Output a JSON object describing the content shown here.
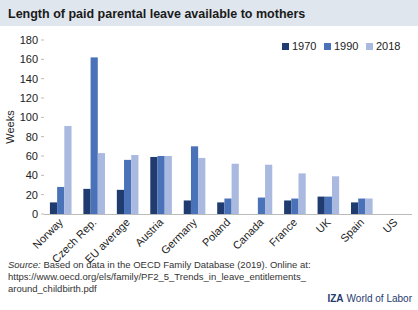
{
  "chart_data": {
    "type": "bar",
    "title": "Length of paid parental leave available to mothers",
    "y_label": "Weeks",
    "categories": [
      "Norway",
      "Czech Rep.",
      "EU average",
      "Austria",
      "Germany",
      "Poland",
      "Canada",
      "France",
      "UK",
      "Spain",
      "US"
    ],
    "series": [
      {
        "name": "1970",
        "color": "#1f3b6f",
        "values": [
          12,
          26,
          25,
          59,
          14,
          12,
          0,
          14,
          18,
          12,
          0
        ]
      },
      {
        "name": "1990",
        "color": "#4a72b8",
        "values": [
          28,
          162,
          56,
          60,
          70,
          16,
          17,
          16,
          18,
          16,
          0
        ]
      },
      {
        "name": "2018",
        "color": "#aab9e0",
        "values": [
          91,
          63,
          61,
          60,
          58,
          52,
          51,
          42,
          39,
          16,
          0
        ]
      }
    ],
    "ylim": [
      0,
      180
    ],
    "yticks": [
      0,
      20,
      40,
      60,
      80,
      100,
      120,
      140,
      160,
      180
    ],
    "grid": false,
    "legend": "top-right",
    "source": [
      "Source: Based on data in the OECD Family Database (2019). Online at:",
      "https://www.oecd.org/els/family/PF2_5_Trends_in_leave_entitlements_",
      "around_childbirth.pdf"
    ],
    "brand": [
      "IZA",
      "World of Labor"
    ]
  }
}
